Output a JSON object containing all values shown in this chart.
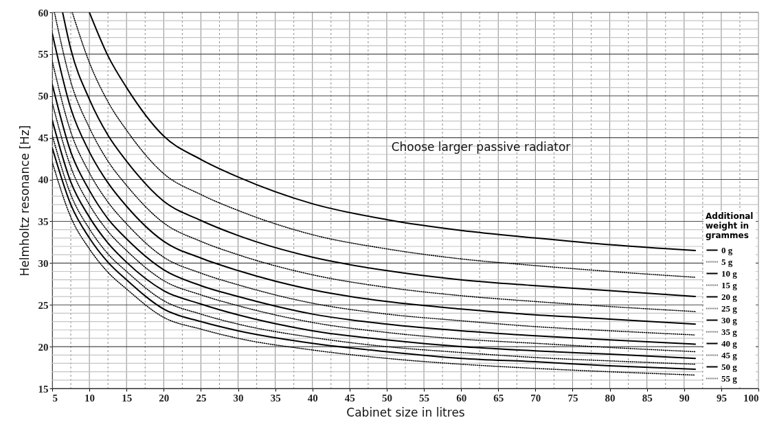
{
  "chart_data": {
    "type": "line",
    "xlabel": "Cabinet size in litres",
    "ylabel": "Helmholtz resonance [Hz]",
    "legend_title": "Additional weight in grammes",
    "annotations": [
      "Choose larger passive radiator"
    ],
    "xlim": [
      5,
      100
    ],
    "ylim": [
      15,
      60
    ],
    "xticks": [
      5,
      {
        "value": 7.5,
        "label": null
      },
      10,
      {
        "value": 12.5,
        "label": null
      },
      15,
      {
        "value": 17.5,
        "label": null
      },
      20,
      {
        "value": 22.5,
        "label": null
      },
      25,
      {
        "value": 27.5,
        "label": null
      },
      30,
      {
        "value": 32.5,
        "label": null
      },
      35,
      {
        "value": 37.5,
        "label": null
      },
      40,
      {
        "value": 42.5,
        "label": null
      },
      45,
      {
        "value": 47.5,
        "label": null
      },
      50,
      {
        "value": 52.5,
        "label": null
      },
      55,
      {
        "value": 57.5,
        "label": null
      },
      60,
      {
        "value": 62.5,
        "label": null
      },
      65,
      {
        "value": 67.5,
        "label": null
      },
      70,
      {
        "value": 72.5,
        "label": null
      },
      75,
      {
        "value": 77.5,
        "label": null
      },
      80,
      {
        "value": 82.5,
        "label": null
      },
      85,
      {
        "value": 87.5,
        "label": null
      },
      90,
      {
        "value": 92.5,
        "label": null
      },
      95,
      {
        "value": 97.5,
        "label": null
      },
      100
    ],
    "yticks": [
      15,
      {
        "value": 16,
        "label": null
      },
      {
        "value": 17,
        "label": null
      },
      {
        "value": 18,
        "label": null
      },
      {
        "value": 19,
        "label": null
      },
      20,
      {
        "value": 21,
        "label": null
      },
      {
        "value": 22,
        "label": null
      },
      {
        "value": 23,
        "label": null
      },
      {
        "value": 24,
        "label": null
      },
      25,
      {
        "value": 26,
        "label": null
      },
      {
        "value": 27,
        "label": null
      },
      {
        "value": 28,
        "label": null
      },
      {
        "value": 29,
        "label": null
      },
      30,
      {
        "value": 31,
        "label": null
      },
      {
        "value": 32,
        "label": null
      },
      {
        "value": 33,
        "label": null
      },
      {
        "value": 34,
        "label": null
      },
      35,
      {
        "value": 36,
        "label": null
      },
      {
        "value": 37,
        "label": null
      },
      {
        "value": 38,
        "label": null
      },
      {
        "value": 39,
        "label": null
      },
      40,
      {
        "value": 41,
        "label": null
      },
      {
        "value": 42,
        "label": null
      },
      {
        "value": 43,
        "label": null
      },
      {
        "value": 44,
        "label": null
      },
      45,
      {
        "value": 46,
        "label": null
      },
      {
        "value": 47,
        "label": null
      },
      {
        "value": 48,
        "label": null
      },
      {
        "value": 49,
        "label": null
      },
      50,
      {
        "value": 51,
        "label": null
      },
      {
        "value": 52,
        "label": null
      },
      {
        "value": 53,
        "label": null
      },
      {
        "value": 54,
        "label": null
      },
      55,
      {
        "value": 56,
        "label": null
      },
      {
        "value": 57,
        "label": null
      },
      {
        "value": 58,
        "label": null
      },
      {
        "value": 59,
        "label": null
      },
      60
    ],
    "grid": true,
    "legend": "bottom right",
    "series": [
      {
        "name": "0 g",
        "color": "#000000",
        "line_style": "solid",
        "x": [
          10,
          12.5,
          15,
          20,
          25,
          30,
          40,
          50,
          60,
          70,
          80,
          91.5
        ],
        "values": [
          60,
          54.8,
          51,
          45.2,
          42.4,
          40.3,
          37.1,
          35.2,
          33.9,
          33.0,
          32.2,
          31.5
        ]
      },
      {
        "name": "5 g",
        "color": "#000000",
        "line_style": "dotted",
        "x": [
          7.7,
          10,
          12.5,
          15,
          20,
          25,
          30,
          40,
          50,
          60,
          70,
          80,
          91.5
        ],
        "values": [
          60,
          54.0,
          49.3,
          45.9,
          40.7,
          38.2,
          36.3,
          33.4,
          31.7,
          30.5,
          29.7,
          29.0,
          28.3
        ]
      },
      {
        "name": "10 g",
        "color": "#000000",
        "line_style": "solid",
        "x": [
          6.4,
          7.5,
          10,
          12.5,
          15,
          20,
          25,
          30,
          40,
          50,
          60,
          70,
          80,
          91.5
        ],
        "values": [
          60,
          55.6,
          49.6,
          45.3,
          42.2,
          37.4,
          35.1,
          33.3,
          30.7,
          29.1,
          28.0,
          27.3,
          26.7,
          26.0
        ]
      },
      {
        "name": "15 g",
        "color": "#000000",
        "line_style": "dotted",
        "x": [
          5.3,
          7.5,
          10,
          12.5,
          15,
          20,
          25,
          30,
          40,
          50,
          60,
          70,
          80,
          91.5
        ],
        "values": [
          60,
          51.7,
          46.2,
          42.2,
          39.3,
          34.8,
          32.6,
          31.0,
          28.6,
          27.1,
          26.1,
          25.4,
          24.8,
          24.2
        ]
      },
      {
        "name": "20 g",
        "color": "#000000",
        "line_style": "solid",
        "x": [
          5,
          7.5,
          10,
          12.5,
          15,
          20,
          25,
          30,
          40,
          50,
          60,
          70,
          80,
          91.5
        ],
        "values": [
          57.5,
          48.5,
          43.3,
          39.6,
          36.8,
          32.6,
          30.6,
          29.1,
          26.8,
          25.4,
          24.5,
          23.8,
          23.3,
          22.7
        ]
      },
      {
        "name": "25 g",
        "color": "#000000",
        "line_style": "dotted",
        "x": [
          5,
          7.5,
          10,
          12.5,
          15,
          20,
          25,
          30,
          40,
          50,
          60,
          70,
          80,
          91.5
        ],
        "values": [
          54.2,
          45.7,
          40.8,
          37.3,
          34.7,
          30.7,
          28.8,
          27.4,
          25.2,
          23.9,
          23.1,
          22.4,
          21.9,
          21.4
        ]
      },
      {
        "name": "30 g",
        "color": "#000000",
        "line_style": "solid",
        "x": [
          5,
          7.5,
          10,
          12.5,
          15,
          20,
          25,
          30,
          40,
          50,
          60,
          70,
          80,
          91.5
        ],
        "values": [
          51.4,
          43.3,
          38.7,
          35.3,
          32.9,
          29.2,
          27.3,
          26.0,
          23.9,
          22.7,
          21.9,
          21.3,
          20.8,
          20.3
        ]
      },
      {
        "name": "35 g",
        "color": "#000000",
        "line_style": "dotted",
        "x": [
          5,
          7.5,
          10,
          12.5,
          15,
          20,
          25,
          30,
          40,
          50,
          60,
          70,
          80,
          91.5
        ],
        "values": [
          49.2,
          41.5,
          37.0,
          33.8,
          31.5,
          27.9,
          26.2,
          24.9,
          22.9,
          21.7,
          20.9,
          20.4,
          19.9,
          19.4
        ]
      },
      {
        "name": "40 g",
        "color": "#000000",
        "line_style": "solid",
        "x": [
          5,
          7.5,
          10,
          12.5,
          15,
          20,
          25,
          30,
          40,
          50,
          60,
          70,
          80,
          91.5
        ],
        "values": [
          47.1,
          39.7,
          35.5,
          32.4,
          30.1,
          26.7,
          25.1,
          23.8,
          21.9,
          20.8,
          20.0,
          19.5,
          19.1,
          18.6
        ]
      },
      {
        "name": "45 g",
        "color": "#000000",
        "line_style": "dotted",
        "x": [
          5,
          7.5,
          10,
          12.5,
          15,
          20,
          25,
          30,
          40,
          50,
          60,
          70,
          80,
          91.5
        ],
        "values": [
          45.3,
          38.2,
          34.1,
          31.1,
          29.0,
          25.5,
          23.9,
          22.7,
          21.1,
          20.0,
          19.3,
          18.7,
          18.3,
          17.9
        ]
      },
      {
        "name": "50 g",
        "color": "#000000",
        "line_style": "solid",
        "x": [
          5,
          7.5,
          10,
          12.5,
          15,
          20,
          25,
          30,
          40,
          50,
          60,
          70,
          80,
          91.5
        ],
        "values": [
          43.8,
          37.0,
          33.0,
          30.1,
          28.0,
          24.5,
          23.0,
          21.9,
          20.4,
          19.4,
          18.6,
          18.2,
          17.7,
          17.3
        ]
      },
      {
        "name": "55 g",
        "color": "#000000",
        "line_style": "dotted",
        "x": [
          5,
          7.5,
          10,
          12.5,
          15,
          20,
          25,
          30,
          40,
          50,
          60,
          70,
          80,
          91.5
        ],
        "values": [
          42.1,
          35.5,
          31.7,
          28.9,
          26.9,
          23.5,
          22.1,
          21.0,
          19.6,
          18.6,
          17.9,
          17.4,
          17.0,
          16.6
        ]
      }
    ]
  }
}
